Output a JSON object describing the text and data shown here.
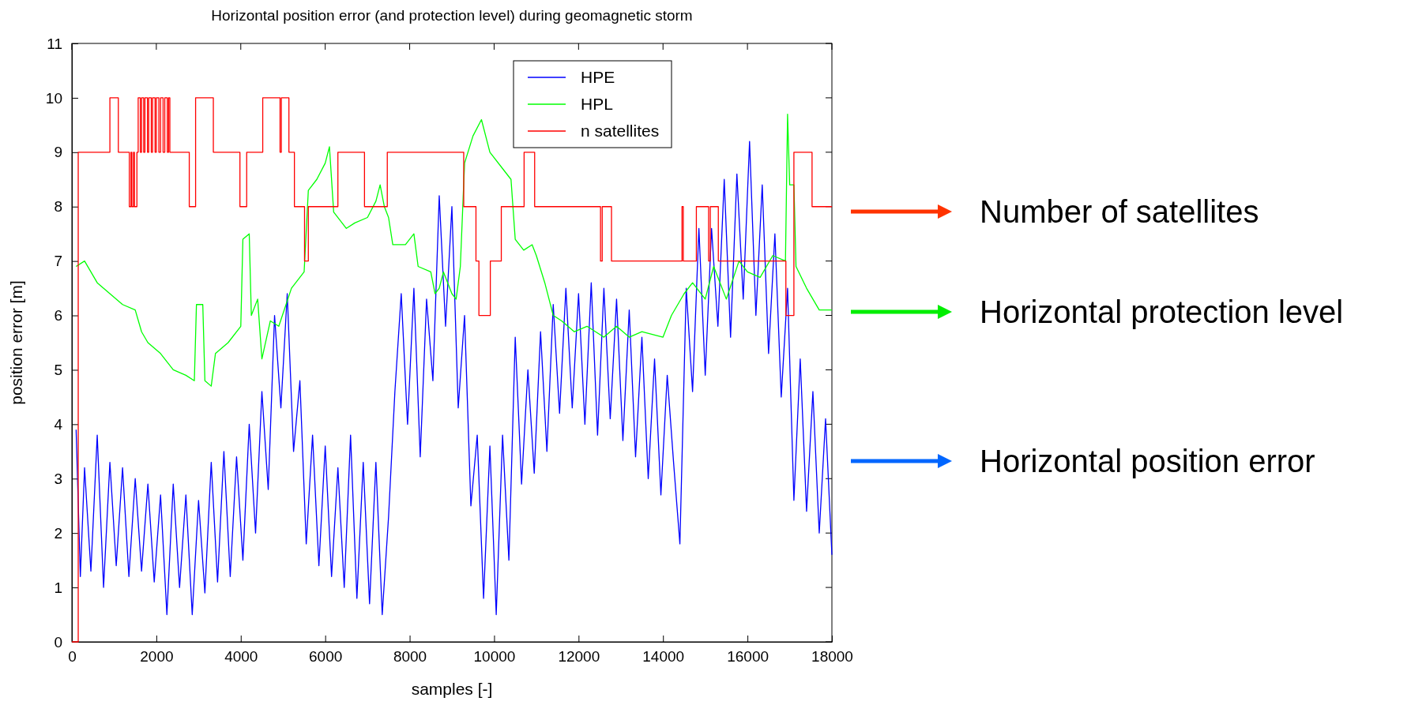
{
  "chart_data": {
    "type": "line",
    "title": "Horizontal position error (and protection level) during geomagnetic storm",
    "xlabel": "samples [-]",
    "ylabel": "position error [m]",
    "xlim": [
      0,
      18000
    ],
    "xticks": [
      0,
      2000,
      4000,
      6000,
      8000,
      10000,
      12000,
      14000,
      16000,
      18000
    ],
    "ylim": [
      0,
      11
    ],
    "yticks": [
      0,
      1,
      2,
      3,
      4,
      5,
      6,
      7,
      8,
      9,
      10,
      11
    ],
    "grid": false,
    "legend": "top right",
    "annotations": [
      "Number of satellites",
      "Horizontal protection level",
      "Horizontal position error"
    ],
    "series": [
      {
        "name": "HPE",
        "color": "#0000ff",
        "x": [
          100,
          200,
          300,
          450,
          600,
          750,
          900,
          1050,
          1200,
          1350,
          1500,
          1650,
          1800,
          1950,
          2100,
          2250,
          2400,
          2550,
          2700,
          2850,
          3000,
          3150,
          3300,
          3450,
          3600,
          3750,
          3900,
          4050,
          4200,
          4350,
          4500,
          4650,
          4800,
          4950,
          5100,
          5250,
          5400,
          5550,
          5700,
          5850,
          6000,
          6150,
          6300,
          6450,
          6600,
          6750,
          6900,
          7050,
          7200,
          7350,
          7500,
          7650,
          7800,
          7950,
          8100,
          8250,
          8400,
          8550,
          8700,
          8850,
          9000,
          9150,
          9300,
          9450,
          9600,
          9750,
          9900,
          10050,
          10200,
          10350,
          10500,
          10650,
          10800,
          10950,
          11100,
          11250,
          11400,
          11550,
          11700,
          11850,
          12000,
          12150,
          12300,
          12450,
          12600,
          12750,
          12900,
          13050,
          13200,
          13350,
          13500,
          13650,
          13800,
          13950,
          14100,
          14250,
          14400,
          14550,
          14700,
          14850,
          15000,
          15150,
          15300,
          15450,
          15600,
          15750,
          15900,
          16050,
          16200,
          16350,
          16500,
          16650,
          16800,
          16950,
          17100,
          17250,
          17400,
          17550,
          17700,
          17850,
          18000
        ],
        "values": [
          3.9,
          1.2,
          3.2,
          1.3,
          3.8,
          1.0,
          3.3,
          1.4,
          3.2,
          1.2,
          3.0,
          1.3,
          2.9,
          1.1,
          2.7,
          0.5,
          2.9,
          1.0,
          2.7,
          0.5,
          2.6,
          0.9,
          3.3,
          1.1,
          3.5,
          1.2,
          3.4,
          1.5,
          4.0,
          2.0,
          4.6,
          2.8,
          6.0,
          4.3,
          6.4,
          3.5,
          4.8,
          1.8,
          3.8,
          1.4,
          3.6,
          1.2,
          3.2,
          1.0,
          3.8,
          0.8,
          3.3,
          0.7,
          3.3,
          0.5,
          2.3,
          4.6,
          6.4,
          4.0,
          6.5,
          3.4,
          6.3,
          4.8,
          8.2,
          5.8,
          8.0,
          4.3,
          6.0,
          2.5,
          3.8,
          0.8,
          3.6,
          0.5,
          3.8,
          1.5,
          5.6,
          2.9,
          5.0,
          3.1,
          5.7,
          3.5,
          6.2,
          4.2,
          6.5,
          4.3,
          6.4,
          4.0,
          6.6,
          3.8,
          6.5,
          4.1,
          6.3,
          3.7,
          6.1,
          3.4,
          5.6,
          3.0,
          5.2,
          2.7,
          4.9,
          3.3,
          1.8,
          6.5,
          4.6,
          7.6,
          4.9,
          7.6,
          5.8,
          8.5,
          5.6,
          8.6,
          6.3,
          9.2,
          6.0,
          8.4,
          5.3,
          7.5,
          4.5,
          6.5,
          2.6,
          5.2,
          2.4,
          4.6,
          2.0,
          4.1,
          1.6
        ]
      },
      {
        "name": "HPL",
        "color": "#00ff00",
        "x": [
          100,
          300,
          600,
          900,
          1200,
          1500,
          1650,
          1800,
          2100,
          2400,
          2700,
          2900,
          2950,
          3100,
          3150,
          3300,
          3400,
          3700,
          4000,
          4050,
          4200,
          4250,
          4400,
          4500,
          4700,
          4900,
          5200,
          5500,
          5600,
          5800,
          6000,
          6100,
          6200,
          6500,
          6700,
          7000,
          7200,
          7300,
          7400,
          7500,
          7600,
          7900,
          8100,
          8200,
          8500,
          8600,
          8700,
          8800,
          9000,
          9100,
          9200,
          9300,
          9500,
          9700,
          9900,
          10200,
          10400,
          10500,
          10700,
          10900,
          11000,
          11200,
          11400,
          11600,
          11900,
          12200,
          12600,
          12900,
          13200,
          13500,
          14000,
          14200,
          14500,
          14700,
          15000,
          15200,
          15500,
          15800,
          16000,
          16300,
          16600,
          16900,
          16950,
          17000,
          17100,
          17150,
          17400,
          17700,
          18000
        ],
        "values": [
          6.9,
          7.0,
          6.6,
          6.4,
          6.2,
          6.1,
          5.7,
          5.5,
          5.3,
          5.0,
          4.9,
          4.8,
          6.2,
          6.2,
          4.8,
          4.7,
          5.3,
          5.5,
          5.8,
          7.4,
          7.5,
          6.0,
          6.3,
          5.2,
          5.9,
          5.8,
          6.5,
          6.8,
          8.3,
          8.5,
          8.8,
          9.1,
          7.9,
          7.6,
          7.7,
          7.8,
          8.1,
          8.4,
          8.0,
          7.8,
          7.3,
          7.3,
          7.5,
          6.9,
          6.8,
          6.4,
          6.5,
          6.8,
          6.4,
          6.3,
          6.9,
          8.8,
          9.3,
          9.6,
          9.0,
          8.7,
          8.5,
          7.4,
          7.2,
          7.3,
          7.1,
          6.6,
          6.0,
          5.9,
          5.7,
          5.8,
          5.6,
          5.8,
          5.6,
          5.7,
          5.6,
          6.0,
          6.4,
          6.6,
          6.3,
          6.9,
          6.3,
          7.0,
          6.8,
          6.7,
          7.1,
          7.0,
          9.7,
          8.4,
          8.4,
          6.9,
          6.5,
          6.1,
          6.1
        ]
      },
      {
        "name": "n satellites",
        "color": "#ff0000",
        "type": "step",
        "x": [
          0,
          150,
          900,
          1100,
          1360,
          1400,
          1420,
          1460,
          1480,
          1540,
          1570,
          1620,
          1650,
          1700,
          1730,
          1790,
          1820,
          1880,
          1910,
          1970,
          2000,
          2060,
          2100,
          2160,
          2200,
          2260,
          2290,
          2320,
          2780,
          2930,
          3350,
          3980,
          4140,
          4520,
          4930,
          4960,
          5140,
          5270,
          5510,
          5600,
          6300,
          6930,
          7470,
          9280,
          9570,
          9640,
          9910,
          10170,
          10710,
          10960,
          12520,
          12560,
          12780,
          14450,
          14480,
          14790,
          15080,
          15120,
          15310,
          16910,
          17100,
          17530,
          18000
        ],
        "values": [
          0,
          9,
          10,
          9,
          8,
          9,
          8,
          9,
          8,
          9,
          10,
          9,
          10,
          9,
          10,
          9,
          10,
          9,
          10,
          9,
          10,
          9,
          10,
          9,
          10,
          9,
          10,
          9,
          8,
          10,
          9,
          8,
          9,
          10,
          9,
          10,
          9,
          8,
          7,
          8,
          9,
          8,
          9,
          8,
          7,
          6,
          7,
          8,
          9,
          8,
          7,
          8,
          7,
          8,
          7,
          8,
          7,
          8,
          7,
          6,
          9,
          8,
          8
        ]
      }
    ]
  }
}
